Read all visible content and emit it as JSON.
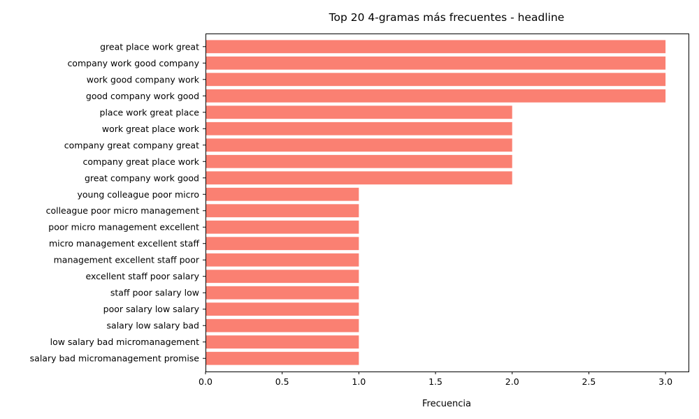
{
  "chart_data": {
    "type": "bar",
    "orientation": "horizontal",
    "title": "Top 20 4-gramas más frecuentes - headline",
    "xlabel": "Frecuencia",
    "ylabel": "",
    "xlim": [
      0,
      3.15
    ],
    "xticks": [
      0.0,
      0.5,
      1.0,
      1.5,
      2.0,
      2.5,
      3.0
    ],
    "xtick_labels": [
      "0.0",
      "0.5",
      "1.0",
      "1.5",
      "2.0",
      "2.5",
      "3.0"
    ],
    "grid": false,
    "bar_color": "#fa8072",
    "categories": [
      "great place work great",
      "company work good company",
      "work good company work",
      "good company work good",
      "place work great place",
      "work great place work",
      "company great company great",
      "company great place work",
      "great company work good",
      "young colleague poor micro",
      "colleague poor micro management",
      "poor micro management excellent",
      "micro management excellent staff",
      "management excellent staff poor",
      "excellent staff poor salary",
      "staff poor salary low",
      "poor salary low salary",
      "salary low salary bad",
      "low salary bad micromanagement",
      "salary bad micromanagement promise"
    ],
    "values": [
      3,
      3,
      3,
      3,
      2,
      2,
      2,
      2,
      2,
      1,
      1,
      1,
      1,
      1,
      1,
      1,
      1,
      1,
      1,
      1
    ]
  }
}
